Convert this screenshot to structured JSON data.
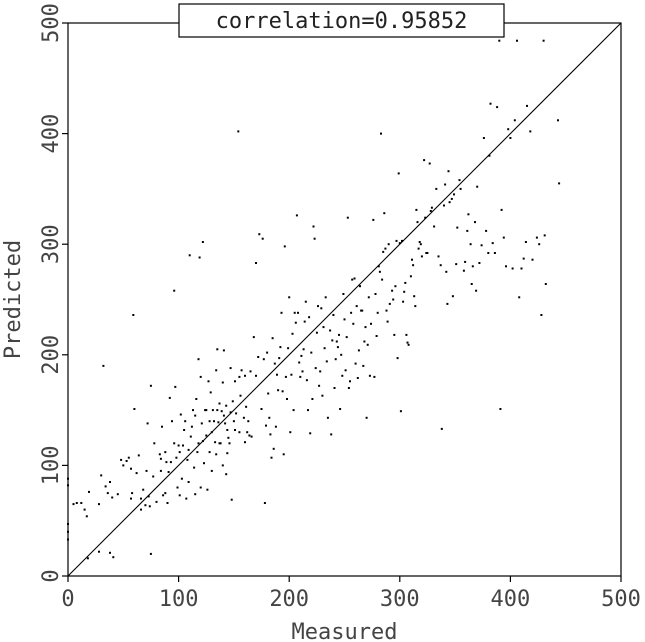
{
  "chart_data": {
    "type": "scatter",
    "title": "correlation=0.95852",
    "xlabel": "Measured",
    "ylabel": "Predicted",
    "xlim": [
      0,
      500
    ],
    "ylim": [
      0,
      500
    ],
    "xticks": [
      "0",
      "100",
      "200",
      "300",
      "400",
      "500"
    ],
    "yticks": [
      "0",
      "100",
      "200",
      "300",
      "400",
      "500"
    ],
    "grid": false,
    "reference_line": {
      "from": [
        0,
        0
      ],
      "to": [
        500,
        500
      ]
    },
    "points": [
      [
        0,
        88
      ],
      [
        0,
        82
      ],
      [
        0,
        47
      ],
      [
        0,
        40
      ],
      [
        0,
        33
      ],
      [
        5,
        65
      ],
      [
        8,
        66
      ],
      [
        12,
        66
      ],
      [
        15,
        60
      ],
      [
        17,
        54
      ],
      [
        18,
        16
      ],
      [
        19,
        76
      ],
      [
        28,
        22
      ],
      [
        28,
        65
      ],
      [
        30,
        91
      ],
      [
        32,
        190
      ],
      [
        34,
        81
      ],
      [
        36,
        75
      ],
      [
        38,
        85
      ],
      [
        38,
        21
      ],
      [
        40,
        71
      ],
      [
        41,
        17
      ],
      [
        45,
        74
      ],
      [
        48,
        105
      ],
      [
        50,
        100
      ],
      [
        53,
        104
      ],
      [
        55,
        107
      ],
      [
        57,
        97
      ],
      [
        57,
        70
      ],
      [
        58,
        75
      ],
      [
        59,
        236
      ],
      [
        60,
        151
      ],
      [
        62,
        93
      ],
      [
        64,
        109
      ],
      [
        66,
        70
      ],
      [
        66,
        60
      ],
      [
        68,
        78
      ],
      [
        70,
        64
      ],
      [
        71,
        95
      ],
      [
        72,
        138
      ],
      [
        73,
        72
      ],
      [
        74,
        63
      ],
      [
        75,
        20
      ],
      [
        75,
        172
      ],
      [
        77,
        90
      ],
      [
        78,
        120
      ],
      [
        80,
        67
      ],
      [
        83,
        110
      ],
      [
        84,
        95
      ],
      [
        84,
        106
      ],
      [
        85,
        135
      ],
      [
        86,
        73
      ],
      [
        88,
        112
      ],
      [
        88,
        75
      ],
      [
        89,
        103
      ],
      [
        90,
        66
      ],
      [
        91,
        94
      ],
      [
        92,
        161
      ],
      [
        93,
        103
      ],
      [
        94,
        140
      ],
      [
        96,
        120
      ],
      [
        96,
        258
      ],
      [
        97,
        171
      ],
      [
        98,
        107
      ],
      [
        99,
        80
      ],
      [
        100,
        118
      ],
      [
        101,
        73
      ],
      [
        101,
        112
      ],
      [
        102,
        146
      ],
      [
        103,
        88
      ],
      [
        104,
        118
      ],
      [
        105,
        132
      ],
      [
        106,
        140
      ],
      [
        107,
        70
      ],
      [
        108,
        105
      ],
      [
        109,
        114
      ],
      [
        109,
        85
      ],
      [
        110,
        290
      ],
      [
        111,
        126
      ],
      [
        112,
        135
      ],
      [
        113,
        150
      ],
      [
        114,
        98
      ],
      [
        115,
        145
      ],
      [
        115,
        74
      ],
      [
        116,
        160
      ],
      [
        117,
        112
      ],
      [
        118,
        196
      ],
      [
        118,
        120
      ],
      [
        119,
        288
      ],
      [
        120,
        180
      ],
      [
        120,
        80
      ],
      [
        121,
        138
      ],
      [
        122,
        302
      ],
      [
        122,
        122
      ],
      [
        123,
        102
      ],
      [
        124,
        150
      ],
      [
        125,
        127
      ],
      [
        125,
        150
      ],
      [
        126,
        78
      ],
      [
        127,
        176
      ],
      [
        128,
        140
      ],
      [
        128,
        112
      ],
      [
        129,
        166
      ],
      [
        130,
        130
      ],
      [
        130,
        95
      ],
      [
        131,
        150
      ],
      [
        132,
        140
      ],
      [
        133,
        121
      ],
      [
        134,
        186
      ],
      [
        134,
        110
      ],
      [
        135,
        205
      ],
      [
        135,
        150
      ],
      [
        136,
        139
      ],
      [
        137,
        120
      ],
      [
        137,
        156
      ],
      [
        138,
        120
      ],
      [
        139,
        149
      ],
      [
        140,
        175
      ],
      [
        140,
        100
      ],
      [
        141,
        204
      ],
      [
        141,
        145
      ],
      [
        142,
        138
      ],
      [
        143,
        92
      ],
      [
        143,
        154
      ],
      [
        144,
        132
      ],
      [
        144,
        111
      ],
      [
        145,
        125
      ],
      [
        146,
        120
      ],
      [
        147,
        188
      ],
      [
        147,
        148
      ],
      [
        148,
        69
      ],
      [
        149,
        158
      ],
      [
        150,
        140
      ],
      [
        151,
        176
      ],
      [
        151,
        132
      ],
      [
        152,
        147
      ],
      [
        154,
        402
      ],
      [
        155,
        130
      ],
      [
        155,
        180
      ],
      [
        156,
        163
      ],
      [
        157,
        186
      ],
      [
        159,
        143
      ],
      [
        160,
        121
      ],
      [
        160,
        181
      ],
      [
        161,
        153
      ],
      [
        162,
        130
      ],
      [
        163,
        140
      ],
      [
        164,
        127
      ],
      [
        165,
        185
      ],
      [
        166,
        126
      ],
      [
        168,
        216
      ],
      [
        170,
        181
      ],
      [
        170,
        283
      ],
      [
        172,
        198
      ],
      [
        173,
        309
      ],
      [
        175,
        151
      ],
      [
        176,
        305
      ],
      [
        177,
        196
      ],
      [
        178,
        66
      ],
      [
        179,
        136
      ],
      [
        180,
        202
      ],
      [
        181,
        165
      ],
      [
        182,
        143
      ],
      [
        183,
        128
      ],
      [
        184,
        107
      ],
      [
        185,
        215
      ],
      [
        186,
        115
      ],
      [
        187,
        192
      ],
      [
        188,
        135
      ],
      [
        189,
        182
      ],
      [
        190,
        168
      ],
      [
        191,
        197
      ],
      [
        192,
        207
      ],
      [
        193,
        238
      ],
      [
        194,
        167
      ],
      [
        195,
        110
      ],
      [
        196,
        298
      ],
      [
        197,
        180
      ],
      [
        198,
        160
      ],
      [
        199,
        206
      ],
      [
        200,
        252
      ],
      [
        201,
        130
      ],
      [
        202,
        182
      ],
      [
        203,
        219
      ],
      [
        204,
        150
      ],
      [
        205,
        238
      ],
      [
        206,
        229
      ],
      [
        207,
        326
      ],
      [
        208,
        238
      ],
      [
        209,
        193
      ],
      [
        210,
        180
      ],
      [
        211,
        199
      ],
      [
        212,
        185
      ],
      [
        213,
        205
      ],
      [
        214,
        230
      ],
      [
        215,
        248
      ],
      [
        216,
        177
      ],
      [
        217,
        150
      ],
      [
        218,
        234
      ],
      [
        219,
        129
      ],
      [
        220,
        202
      ],
      [
        221,
        160
      ],
      [
        222,
        316
      ],
      [
        223,
        305
      ],
      [
        224,
        188
      ],
      [
        225,
        220
      ],
      [
        226,
        244
      ],
      [
        227,
        172
      ],
      [
        228,
        185
      ],
      [
        229,
        242
      ],
      [
        230,
        163
      ],
      [
        231,
        225
      ],
      [
        232,
        206
      ],
      [
        233,
        252
      ],
      [
        234,
        194
      ],
      [
        235,
        143
      ],
      [
        237,
        222
      ],
      [
        238,
        128
      ],
      [
        239,
        213
      ],
      [
        240,
        236
      ],
      [
        241,
        170
      ],
      [
        242,
        196
      ],
      [
        243,
        212
      ],
      [
        244,
        207
      ],
      [
        245,
        218
      ],
      [
        246,
        151
      ],
      [
        247,
        200
      ],
      [
        248,
        181
      ],
      [
        249,
        255
      ],
      [
        250,
        232
      ],
      [
        251,
        186
      ],
      [
        252,
        216
      ],
      [
        253,
        324
      ],
      [
        254,
        170
      ],
      [
        255,
        176
      ],
      [
        256,
        238
      ],
      [
        257,
        268
      ],
      [
        258,
        228
      ],
      [
        259,
        269
      ],
      [
        260,
        192
      ],
      [
        261,
        244
      ],
      [
        262,
        179
      ],
      [
        263,
        204
      ],
      [
        264,
        262
      ],
      [
        265,
        240
      ],
      [
        266,
        240
      ],
      [
        267,
        190
      ],
      [
        268,
        212
      ],
      [
        269,
        225
      ],
      [
        270,
        143
      ],
      [
        271,
        209
      ],
      [
        272,
        252
      ],
      [
        273,
        181
      ],
      [
        274,
        228
      ],
      [
        276,
        322
      ],
      [
        277,
        180
      ],
      [
        278,
        255
      ],
      [
        279,
        217
      ],
      [
        280,
        238
      ],
      [
        281,
        280
      ],
      [
        282,
        275
      ],
      [
        283,
        400
      ],
      [
        284,
        268
      ],
      [
        285,
        293
      ],
      [
        286,
        328
      ],
      [
        287,
        296
      ],
      [
        288,
        240
      ],
      [
        289,
        230
      ],
      [
        290,
        300
      ],
      [
        291,
        246
      ],
      [
        293,
        258
      ],
      [
        294,
        250
      ],
      [
        295,
        218
      ],
      [
        296,
        262
      ],
      [
        297,
        303
      ],
      [
        298,
        197
      ],
      [
        299,
        364
      ],
      [
        300,
        301
      ],
      [
        301,
        149
      ],
      [
        302,
        303
      ],
      [
        303,
        248
      ],
      [
        304,
        257
      ],
      [
        305,
        265
      ],
      [
        306,
        218
      ],
      [
        307,
        211
      ],
      [
        308,
        209
      ],
      [
        310,
        271
      ],
      [
        311,
        286
      ],
      [
        312,
        281
      ],
      [
        313,
        253
      ],
      [
        314,
        244
      ],
      [
        315,
        331
      ],
      [
        316,
        320
      ],
      [
        317,
        296
      ],
      [
        318,
        302
      ],
      [
        319,
        300
      ],
      [
        320,
        289
      ],
      [
        322,
        376
      ],
      [
        323,
        324
      ],
      [
        324,
        292
      ],
      [
        325,
        292
      ],
      [
        327,
        373
      ],
      [
        328,
        330
      ],
      [
        329,
        333
      ],
      [
        331,
        316
      ],
      [
        333,
        350
      ],
      [
        335,
        289
      ],
      [
        337,
        281
      ],
      [
        338,
        133
      ],
      [
        340,
        335
      ],
      [
        341,
        354
      ],
      [
        342,
        275
      ],
      [
        343,
        246
      ],
      [
        344,
        366
      ],
      [
        345,
        338
      ],
      [
        347,
        341
      ],
      [
        348,
        253
      ],
      [
        349,
        345
      ],
      [
        351,
        282
      ],
      [
        352,
        315
      ],
      [
        354,
        358
      ],
      [
        355,
        350
      ],
      [
        358,
        276
      ],
      [
        359,
        284
      ],
      [
        361,
        312
      ],
      [
        362,
        327
      ],
      [
        364,
        300
      ],
      [
        365,
        264
      ],
      [
        366,
        280
      ],
      [
        368,
        320
      ],
      [
        369,
        258
      ],
      [
        370,
        352
      ],
      [
        372,
        283
      ],
      [
        374,
        299
      ],
      [
        376,
        396
      ],
      [
        378,
        312
      ],
      [
        380,
        292
      ],
      [
        381,
        380
      ],
      [
        382,
        427
      ],
      [
        384,
        301
      ],
      [
        386,
        292
      ],
      [
        388,
        424
      ],
      [
        390,
        484
      ],
      [
        391,
        151
      ],
      [
        392,
        331
      ],
      [
        394,
        306
      ],
      [
        396,
        280
      ],
      [
        398,
        404
      ],
      [
        400,
        396
      ],
      [
        402,
        278
      ],
      [
        404,
        412
      ],
      [
        406,
        484
      ],
      [
        408,
        252
      ],
      [
        410,
        278
      ],
      [
        412,
        287
      ],
      [
        414,
        302
      ],
      [
        415,
        425
      ],
      [
        418,
        402
      ],
      [
        420,
        286
      ],
      [
        424,
        306
      ],
      [
        426,
        300
      ],
      [
        428,
        236
      ],
      [
        430,
        484
      ],
      [
        431,
        308
      ],
      [
        432,
        264
      ],
      [
        443,
        412
      ],
      [
        444,
        355
      ]
    ]
  }
}
